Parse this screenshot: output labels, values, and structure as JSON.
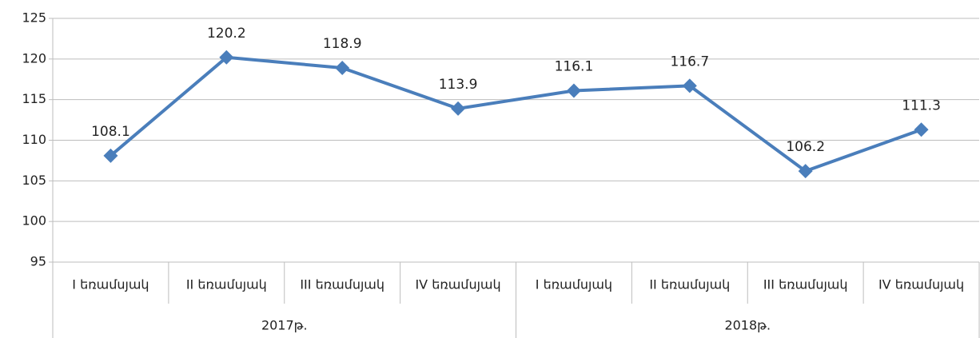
{
  "chart_data": {
    "type": "line",
    "categories": [
      "I եռամսյակ",
      "II եռամսյակ",
      "III եռամսյակ",
      "IV եռամսյակ",
      "I եռամսյակ",
      "II եռամսյակ",
      "III եռամսյակ",
      "IV եռամսյակ"
    ],
    "groups": [
      "2017թ.",
      "2018թ."
    ],
    "values": [
      108.1,
      120.2,
      118.9,
      113.9,
      116.1,
      116.7,
      106.2,
      111.3
    ],
    "color": "#4a7ebb",
    "ylim": [
      95,
      125
    ],
    "yticks": [
      95,
      100,
      105,
      110,
      115,
      120,
      125
    ],
    "grid": true
  }
}
